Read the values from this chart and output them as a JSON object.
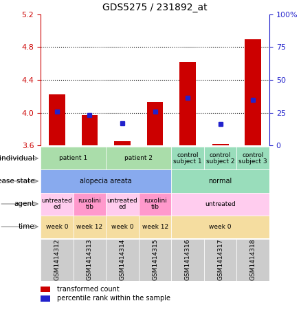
{
  "title": "GDS5275 / 231892_at",
  "samples": [
    "GSM1414312",
    "GSM1414313",
    "GSM1414314",
    "GSM1414315",
    "GSM1414316",
    "GSM1414317",
    "GSM1414318"
  ],
  "bar_values": [
    4.22,
    3.97,
    3.65,
    4.13,
    4.62,
    3.62,
    4.9
  ],
  "bar_base": 3.6,
  "blue_values": [
    4.01,
    3.97,
    3.87,
    4.01,
    4.18,
    3.86,
    4.16
  ],
  "ylim": [
    3.6,
    5.2
  ],
  "yticks": [
    3.6,
    4.0,
    4.4,
    4.8,
    5.2
  ],
  "y2ticks": [
    0,
    25,
    50,
    75,
    100
  ],
  "y2labels": [
    "0",
    "25",
    "50",
    "75",
    "100%"
  ],
  "dotted_lines": [
    4.0,
    4.4,
    4.8
  ],
  "bar_color": "#cc0000",
  "blue_color": "#2222cc",
  "sample_bg_color": "#cccccc",
  "bar_width": 0.5,
  "row_labels": [
    "individual",
    "disease state",
    "agent",
    "time"
  ],
  "legend_entries": [
    "transformed count",
    "percentile rank within the sample"
  ]
}
